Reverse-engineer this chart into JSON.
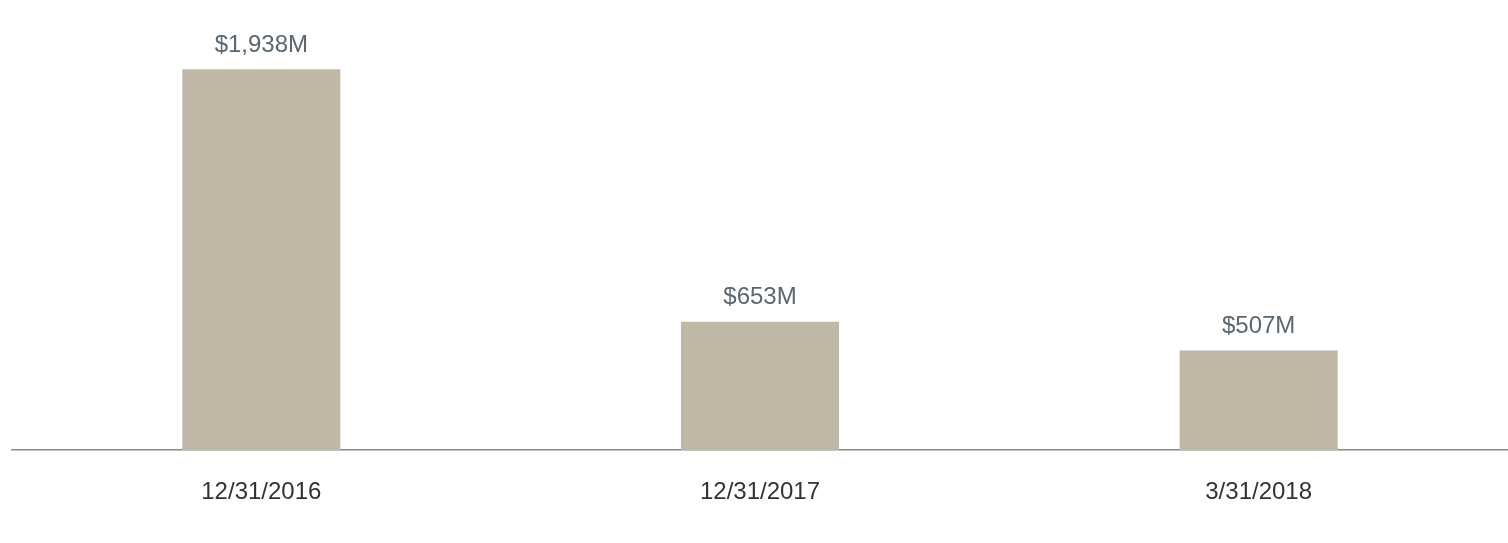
{
  "chart_data": {
    "type": "bar",
    "categories": [
      "12/31/2016",
      "12/31/2017",
      "3/31/2018"
    ],
    "values": [
      1938,
      653,
      507
    ],
    "color": "#bfb8a5",
    "value_labels": [
      "$1,938M",
      "$653M",
      "$507M"
    ],
    "grid": false,
    "legend": false
  }
}
